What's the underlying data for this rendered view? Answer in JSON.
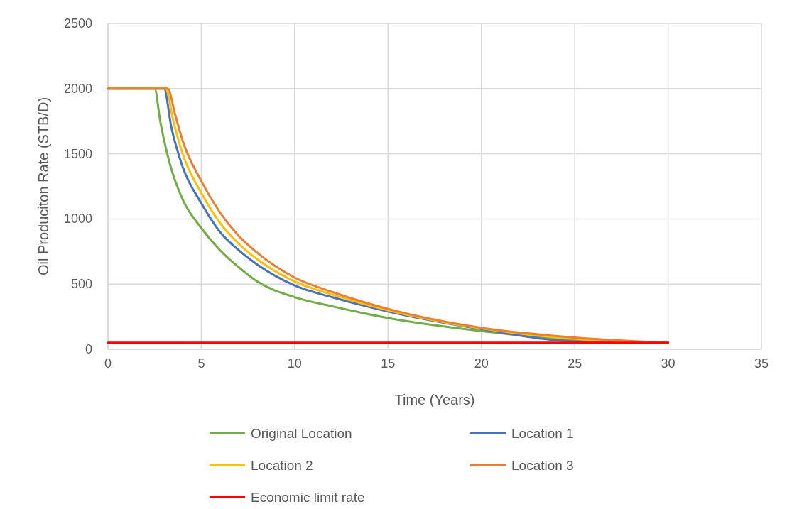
{
  "chart_data": {
    "type": "line",
    "xlabel": "Time (Years)",
    "ylabel": "Oil Produciton Rate (STB/D)",
    "xlim": [
      0,
      35
    ],
    "xticks": [
      0,
      5,
      10,
      15,
      20,
      25,
      30,
      35
    ],
    "ylim": [
      0,
      2500
    ],
    "yticks": [
      0,
      500,
      1000,
      1500,
      2000,
      2500
    ],
    "grid": true,
    "legend": "bottom",
    "marker": "none",
    "line_style": "solid",
    "series": [
      {
        "name": "Original Location",
        "color": "#70ad47",
        "x": [
          0,
          2.5,
          2.8,
          3.3,
          4,
          5,
          6,
          7,
          8,
          10,
          12,
          15,
          20,
          25,
          30
        ],
        "values": [
          2000,
          2000,
          1750,
          1430,
          1150,
          930,
          760,
          630,
          520,
          400,
          330,
          240,
          140,
          70,
          50
        ]
      },
      {
        "name": "Location 1",
        "color": "#4472c4",
        "x": [
          0,
          3,
          3.4,
          4,
          5,
          6,
          7,
          8,
          10,
          12,
          15,
          20,
          25,
          30
        ],
        "values": [
          2000,
          2000,
          1700,
          1400,
          1120,
          900,
          760,
          650,
          490,
          400,
          290,
          155,
          60,
          50
        ]
      },
      {
        "name": "Location 2",
        "color": "#ffc000",
        "x": [
          0,
          3.1,
          3.5,
          4,
          5,
          6,
          7,
          8,
          10,
          12,
          15,
          20,
          25,
          30
        ],
        "values": [
          2000,
          2000,
          1750,
          1500,
          1200,
          970,
          810,
          690,
          520,
          420,
          300,
          160,
          80,
          50
        ]
      },
      {
        "name": "Location 3",
        "color": "#ed7d31",
        "x": [
          0,
          3.2,
          3.6,
          4,
          5,
          6,
          7,
          8,
          10,
          12,
          15,
          20,
          25,
          30
        ],
        "values": [
          2000,
          2000,
          1800,
          1600,
          1290,
          1050,
          870,
          740,
          550,
          440,
          310,
          165,
          90,
          50
        ]
      },
      {
        "name": "Economic limit rate",
        "color": "#ff0000",
        "x": [
          0,
          30
        ],
        "values": [
          50,
          50
        ]
      }
    ]
  }
}
